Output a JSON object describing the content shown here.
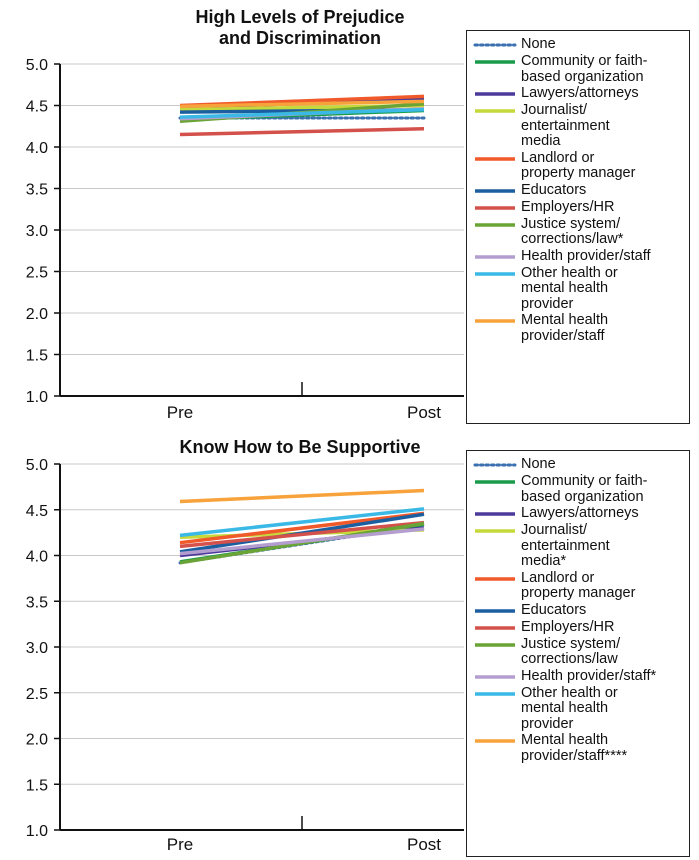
{
  "chart_data": [
    {
      "type": "line",
      "title": "High Levels of Prejudice\nand Discrimination",
      "categories": [
        "Pre",
        "Post"
      ],
      "ylim": [
        1.0,
        5.0
      ],
      "yticks": [
        "5.0",
        "4.5",
        "4.0",
        "3.5",
        "3.0",
        "2.5",
        "2.0",
        "1.5",
        "1.0"
      ],
      "legend_position": "right",
      "series": [
        {
          "name": "None",
          "color": "#3a6fb0",
          "dashed": true,
          "values": [
            4.35,
            4.35
          ]
        },
        {
          "name": "Community or faith-\nbased organization",
          "color": "#1a9b4b",
          "values": [
            4.33,
            4.44
          ]
        },
        {
          "name": "Lawyers/attorneys",
          "color": "#4b3a9a",
          "values": [
            4.47,
            4.58
          ]
        },
        {
          "name": "Journalist/\nentertainment\nmedia",
          "color": "#c6d93a",
          "values": [
            4.45,
            4.5
          ]
        },
        {
          "name": "Landlord or\nproperty manager",
          "color": "#f0592a",
          "values": [
            4.5,
            4.61
          ]
        },
        {
          "name": "Educators",
          "color": "#1b5fa0",
          "values": [
            4.42,
            4.45
          ]
        },
        {
          "name": "Employers/HR",
          "color": "#d4504a",
          "values": [
            4.15,
            4.22
          ]
        },
        {
          "name": "Justice system/\ncorrections/law*",
          "color": "#6aa436",
          "values": [
            4.31,
            4.52
          ]
        },
        {
          "name": "Health provider/staff",
          "color": "#b49ed0",
          "values": [
            4.34,
            4.46
          ]
        },
        {
          "name": "Other health or\nmental health\nprovider",
          "color": "#3ab9e6",
          "values": [
            4.36,
            4.45
          ]
        },
        {
          "name": "Mental health\nprovider/staff",
          "color": "#f7a23a",
          "values": [
            4.49,
            4.55
          ]
        }
      ]
    },
    {
      "type": "line",
      "title": "Know How to Be Supportive",
      "categories": [
        "Pre",
        "Post"
      ],
      "ylim": [
        1.0,
        5.0
      ],
      "yticks": [
        "5.0",
        "4.5",
        "4.0",
        "3.5",
        "3.0",
        "2.5",
        "2.0",
        "1.5",
        "1.0"
      ],
      "legend_position": "right",
      "series": [
        {
          "name": "None",
          "color": "#3a6fb0",
          "dashed": true,
          "values": [
            3.92,
            4.33
          ]
        },
        {
          "name": "Community or faith-\nbased organization",
          "color": "#1a9b4b",
          "values": [
            3.93,
            4.34
          ]
        },
        {
          "name": "Lawyers/attorneys",
          "color": "#4b3a9a",
          "values": [
            4.0,
            4.3
          ]
        },
        {
          "name": "Journalist/\nentertainment\nmedia*",
          "color": "#c6d93a",
          "values": [
            4.2,
            4.28
          ]
        },
        {
          "name": "Landlord or\nproperty manager",
          "color": "#f0592a",
          "values": [
            4.14,
            4.46
          ]
        },
        {
          "name": "Educators",
          "color": "#1b5fa0",
          "values": [
            4.04,
            4.45
          ]
        },
        {
          "name": "Employers/HR",
          "color": "#d4504a",
          "values": [
            4.1,
            4.36
          ]
        },
        {
          "name": "Justice system/\ncorrections/law",
          "color": "#6aa436",
          "values": [
            3.92,
            4.35
          ]
        },
        {
          "name": "Health provider/staff*",
          "color": "#b49ed0",
          "values": [
            4.02,
            4.29
          ]
        },
        {
          "name": "Other health or\nmental health\nprovider",
          "color": "#3ab9e6",
          "values": [
            4.22,
            4.51
          ]
        },
        {
          "name": "Mental health\nprovider/staff****",
          "color": "#f7a23a",
          "values": [
            4.59,
            4.71
          ]
        }
      ]
    }
  ]
}
